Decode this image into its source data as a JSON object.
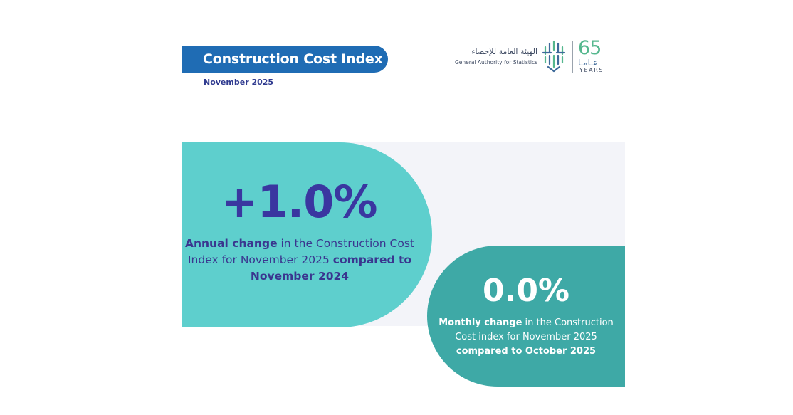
{
  "header": {
    "title": "Construction Cost Index",
    "date": "November 2025"
  },
  "logo": {
    "arabic_name": "الهيئة العامة للإحصاء",
    "english_name": "General Authority for Statistics",
    "anniversary_number": "65",
    "anniversary_arabic": "عـامـا",
    "anniversary_years": "YEARS",
    "colors": {
      "green": "#55b78e",
      "blue": "#3e6a9a"
    }
  },
  "annual": {
    "value": "+1.0%",
    "desc_bold": "Annual change",
    "desc_mid": " in the Construction Cost Index for November 2025 ",
    "desc_end": "compared to November 2024",
    "color": "#5ecfcd"
  },
  "monthly": {
    "value": "0.0%",
    "desc_bold": "Monthly change",
    "desc_mid": " in the Construction Cost index for November 2025 ",
    "desc_end": "compared to October 2025",
    "color": "#3ea9a6"
  },
  "colors": {
    "title_bar": "#1f6cb4",
    "accent_text": "#3a36a0",
    "panel_bg": "#f3f4f9"
  }
}
